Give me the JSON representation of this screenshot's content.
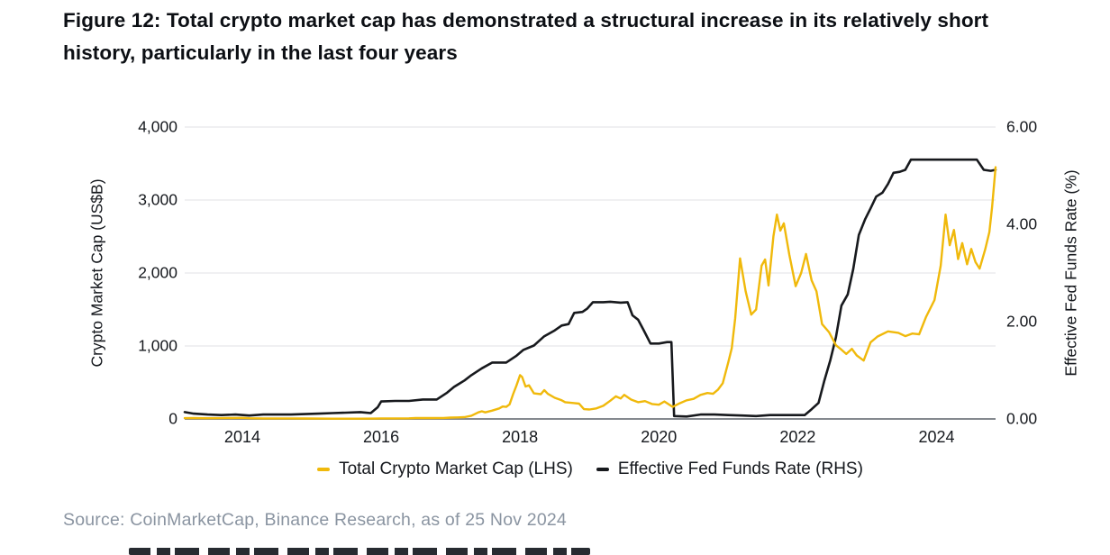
{
  "figure": {
    "title": "Figure 12: Total crypto market cap has demonstrated a structural increase in its relatively short history, particularly in the last four years",
    "source": "Source: CoinMarketCap, Binance Research, as of 25 Nov 2024"
  },
  "colors": {
    "crypto_line": "#F0B90B",
    "fed_line": "#17191d",
    "gridline": "#e7e8ea",
    "axis_line": "#85898f",
    "tick_text": "#15181d",
    "source_text": "#8a94a1"
  },
  "chart_data": {
    "type": "line",
    "title": "",
    "grid": true,
    "legend_position": "bottom-center",
    "x": {
      "range": [
        2013.17,
        2024.85
      ],
      "ticks": [
        {
          "v": 2014,
          "label": "2014"
        },
        {
          "v": 2016,
          "label": "2016"
        },
        {
          "v": 2018,
          "label": "2018"
        },
        {
          "v": 2020,
          "label": "2020"
        },
        {
          "v": 2022,
          "label": "2022"
        },
        {
          "v": 2024,
          "label": "2024"
        }
      ]
    },
    "y_left": {
      "label": "Crypto Market Cap (US$B)",
      "range": [
        0,
        4000
      ],
      "gridlines": [
        1000,
        2000,
        3000,
        4000
      ],
      "ticks": [
        {
          "v": 0,
          "label": "0"
        },
        {
          "v": 1000,
          "label": "1,000"
        },
        {
          "v": 2000,
          "label": "2,000"
        },
        {
          "v": 3000,
          "label": "3,000"
        },
        {
          "v": 4000,
          "label": "4,000"
        }
      ]
    },
    "y_right": {
      "label": "Effective Fed Funds Rate (%)",
      "range": [
        0,
        6
      ],
      "ticks": [
        {
          "v": 0,
          "label": "0.00"
        },
        {
          "v": 2,
          "label": "2.00"
        },
        {
          "v": 4,
          "label": "4.00"
        },
        {
          "v": 6,
          "label": "6.00"
        }
      ]
    },
    "legend": [
      {
        "label": "Total Crypto Market Cap (LHS)",
        "color": "#F0B90B"
      },
      {
        "label": "Effective Fed Funds Rate (RHS)",
        "color": "#17191d"
      }
    ],
    "series": [
      {
        "name": "Effective Fed Funds Rate (RHS)",
        "axis": "right",
        "color": "#17191d",
        "width": 2.6,
        "points": [
          [
            2013.17,
            0.14
          ],
          [
            2013.3,
            0.11
          ],
          [
            2013.5,
            0.09
          ],
          [
            2013.7,
            0.08
          ],
          [
            2013.9,
            0.09
          ],
          [
            2014.1,
            0.07
          ],
          [
            2014.3,
            0.09
          ],
          [
            2014.5,
            0.09
          ],
          [
            2014.7,
            0.09
          ],
          [
            2014.9,
            0.1
          ],
          [
            2015.1,
            0.11
          ],
          [
            2015.3,
            0.12
          ],
          [
            2015.5,
            0.13
          ],
          [
            2015.7,
            0.14
          ],
          [
            2015.85,
            0.12
          ],
          [
            2015.95,
            0.24
          ],
          [
            2016.0,
            0.36
          ],
          [
            2016.2,
            0.37
          ],
          [
            2016.4,
            0.37
          ],
          [
            2016.6,
            0.4
          ],
          [
            2016.8,
            0.4
          ],
          [
            2016.95,
            0.54
          ],
          [
            2017.05,
            0.66
          ],
          [
            2017.2,
            0.79
          ],
          [
            2017.3,
            0.9
          ],
          [
            2017.45,
            1.04
          ],
          [
            2017.6,
            1.16
          ],
          [
            2017.8,
            1.16
          ],
          [
            2017.95,
            1.3
          ],
          [
            2018.05,
            1.42
          ],
          [
            2018.2,
            1.51
          ],
          [
            2018.35,
            1.7
          ],
          [
            2018.5,
            1.82
          ],
          [
            2018.6,
            1.92
          ],
          [
            2018.7,
            1.95
          ],
          [
            2018.78,
            2.18
          ],
          [
            2018.9,
            2.2
          ],
          [
            2018.97,
            2.27
          ],
          [
            2019.05,
            2.4
          ],
          [
            2019.2,
            2.4
          ],
          [
            2019.3,
            2.41
          ],
          [
            2019.45,
            2.39
          ],
          [
            2019.55,
            2.4
          ],
          [
            2019.62,
            2.13
          ],
          [
            2019.7,
            2.04
          ],
          [
            2019.78,
            1.83
          ],
          [
            2019.88,
            1.55
          ],
          [
            2020.0,
            1.55
          ],
          [
            2020.12,
            1.58
          ],
          [
            2020.18,
            1.58
          ],
          [
            2020.22,
            0.06
          ],
          [
            2020.4,
            0.05
          ],
          [
            2020.6,
            0.09
          ],
          [
            2020.8,
            0.09
          ],
          [
            2021.0,
            0.08
          ],
          [
            2021.2,
            0.07
          ],
          [
            2021.4,
            0.06
          ],
          [
            2021.6,
            0.08
          ],
          [
            2021.8,
            0.08
          ],
          [
            2022.0,
            0.08
          ],
          [
            2022.1,
            0.08
          ],
          [
            2022.2,
            0.2
          ],
          [
            2022.3,
            0.33
          ],
          [
            2022.38,
            0.77
          ],
          [
            2022.47,
            1.21
          ],
          [
            2022.55,
            1.68
          ],
          [
            2022.63,
            2.33
          ],
          [
            2022.72,
            2.56
          ],
          [
            2022.8,
            3.08
          ],
          [
            2022.88,
            3.78
          ],
          [
            2022.97,
            4.1
          ],
          [
            2023.05,
            4.33
          ],
          [
            2023.13,
            4.57
          ],
          [
            2023.22,
            4.65
          ],
          [
            2023.3,
            4.83
          ],
          [
            2023.38,
            5.06
          ],
          [
            2023.47,
            5.08
          ],
          [
            2023.55,
            5.12
          ],
          [
            2023.63,
            5.33
          ],
          [
            2023.8,
            5.33
          ],
          [
            2024.0,
            5.33
          ],
          [
            2024.2,
            5.33
          ],
          [
            2024.4,
            5.33
          ],
          [
            2024.58,
            5.33
          ],
          [
            2024.68,
            5.12
          ],
          [
            2024.78,
            5.1
          ],
          [
            2024.85,
            5.12
          ]
        ]
      },
      {
        "name": "Total Crypto Market Cap (LHS)",
        "axis": "left",
        "color": "#F0B90B",
        "width": 2.4,
        "points": [
          [
            2013.17,
            11
          ],
          [
            2013.3,
            12
          ],
          [
            2013.5,
            10
          ],
          [
            2013.7,
            11
          ],
          [
            2013.9,
            13
          ],
          [
            2014.0,
            15
          ],
          [
            2014.1,
            10
          ],
          [
            2014.3,
            8
          ],
          [
            2014.5,
            8
          ],
          [
            2014.7,
            7
          ],
          [
            2014.9,
            6
          ],
          [
            2015.1,
            5
          ],
          [
            2015.3,
            4
          ],
          [
            2015.5,
            4
          ],
          [
            2015.7,
            4
          ],
          [
            2015.9,
            5
          ],
          [
            2016.0,
            7
          ],
          [
            2016.2,
            8
          ],
          [
            2016.4,
            9
          ],
          [
            2016.5,
            12
          ],
          [
            2016.7,
            12
          ],
          [
            2016.9,
            14
          ],
          [
            2017.0,
            18
          ],
          [
            2017.1,
            21
          ],
          [
            2017.2,
            25
          ],
          [
            2017.3,
            45
          ],
          [
            2017.4,
            90
          ],
          [
            2017.45,
            105
          ],
          [
            2017.5,
            90
          ],
          [
            2017.6,
            115
          ],
          [
            2017.7,
            145
          ],
          [
            2017.75,
            170
          ],
          [
            2017.8,
            165
          ],
          [
            2017.85,
            200
          ],
          [
            2017.9,
            340
          ],
          [
            2017.95,
            460
          ],
          [
            2018.0,
            600
          ],
          [
            2018.03,
            575
          ],
          [
            2018.08,
            445
          ],
          [
            2018.13,
            460
          ],
          [
            2018.2,
            350
          ],
          [
            2018.3,
            340
          ],
          [
            2018.35,
            395
          ],
          [
            2018.4,
            345
          ],
          [
            2018.5,
            290
          ],
          [
            2018.6,
            255
          ],
          [
            2018.65,
            230
          ],
          [
            2018.75,
            220
          ],
          [
            2018.85,
            210
          ],
          [
            2018.92,
            135
          ],
          [
            2019.0,
            130
          ],
          [
            2019.1,
            145
          ],
          [
            2019.2,
            180
          ],
          [
            2019.3,
            250
          ],
          [
            2019.38,
            310
          ],
          [
            2019.45,
            280
          ],
          [
            2019.5,
            330
          ],
          [
            2019.6,
            265
          ],
          [
            2019.7,
            230
          ],
          [
            2019.8,
            245
          ],
          [
            2019.9,
            205
          ],
          [
            2020.0,
            195
          ],
          [
            2020.08,
            240
          ],
          [
            2020.2,
            165
          ],
          [
            2020.3,
            215
          ],
          [
            2020.4,
            255
          ],
          [
            2020.5,
            275
          ],
          [
            2020.6,
            330
          ],
          [
            2020.7,
            355
          ],
          [
            2020.78,
            345
          ],
          [
            2020.85,
            400
          ],
          [
            2020.92,
            490
          ],
          [
            2021.0,
            775
          ],
          [
            2021.05,
            970
          ],
          [
            2021.1,
            1380
          ],
          [
            2021.17,
            2200
          ],
          [
            2021.25,
            1750
          ],
          [
            2021.33,
            1430
          ],
          [
            2021.4,
            1500
          ],
          [
            2021.48,
            2100
          ],
          [
            2021.53,
            2185
          ],
          [
            2021.58,
            1830
          ],
          [
            2021.65,
            2500
          ],
          [
            2021.7,
            2800
          ],
          [
            2021.75,
            2580
          ],
          [
            2021.8,
            2680
          ],
          [
            2021.88,
            2250
          ],
          [
            2021.97,
            1820
          ],
          [
            2022.05,
            2000
          ],
          [
            2022.12,
            2260
          ],
          [
            2022.2,
            1900
          ],
          [
            2022.27,
            1750
          ],
          [
            2022.35,
            1300
          ],
          [
            2022.45,
            1190
          ],
          [
            2022.55,
            1010
          ],
          [
            2022.63,
            950
          ],
          [
            2022.7,
            890
          ],
          [
            2022.78,
            960
          ],
          [
            2022.85,
            870
          ],
          [
            2022.95,
            800
          ],
          [
            2023.05,
            1050
          ],
          [
            2023.15,
            1130
          ],
          [
            2023.3,
            1200
          ],
          [
            2023.45,
            1180
          ],
          [
            2023.55,
            1135
          ],
          [
            2023.65,
            1170
          ],
          [
            2023.75,
            1160
          ],
          [
            2023.85,
            1400
          ],
          [
            2023.97,
            1630
          ],
          [
            2024.06,
            2100
          ],
          [
            2024.13,
            2800
          ],
          [
            2024.19,
            2380
          ],
          [
            2024.25,
            2590
          ],
          [
            2024.31,
            2190
          ],
          [
            2024.37,
            2410
          ],
          [
            2024.44,
            2120
          ],
          [
            2024.5,
            2330
          ],
          [
            2024.56,
            2150
          ],
          [
            2024.62,
            2060
          ],
          [
            2024.7,
            2320
          ],
          [
            2024.76,
            2560
          ],
          [
            2024.8,
            2900
          ],
          [
            2024.85,
            3450
          ]
        ]
      }
    ]
  }
}
